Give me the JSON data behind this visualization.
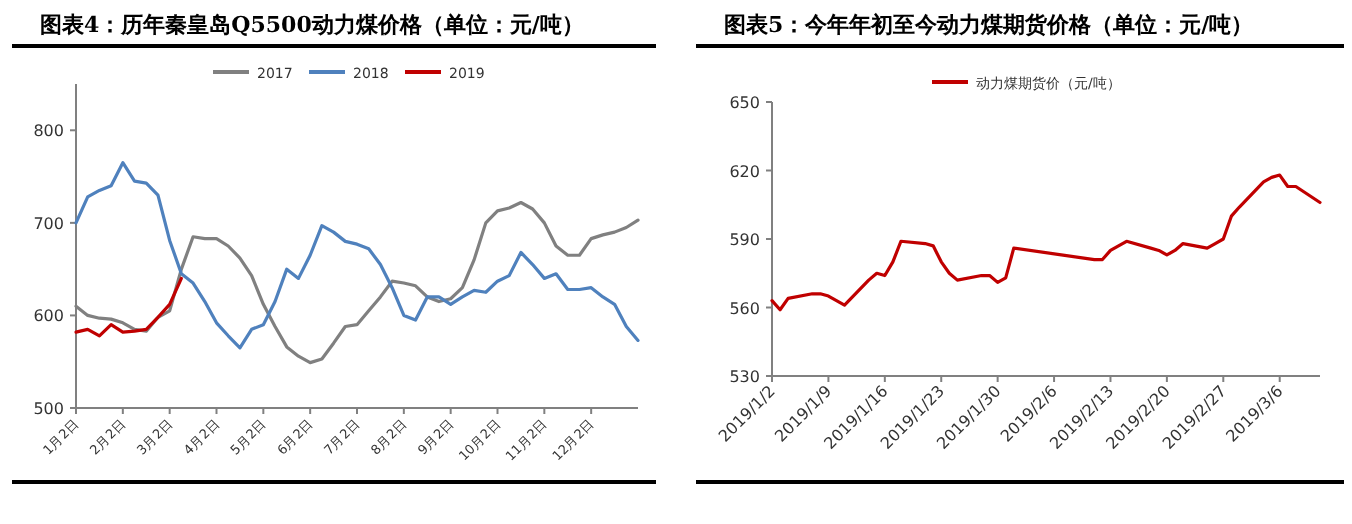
{
  "chart_data": [
    {
      "type": "line",
      "title": "图表4：历年秦皇岛Q5500动力煤价格（单位：元/吨）",
      "categories": [
        "1月2日",
        null,
        null,
        null,
        "2月2日",
        null,
        null,
        null,
        "3月2日",
        null,
        null,
        null,
        "4月2日",
        null,
        null,
        null,
        "5月2日",
        null,
        null,
        null,
        "6月2日",
        null,
        null,
        null,
        "7月2日",
        null,
        null,
        null,
        "8月2日",
        null,
        null,
        null,
        "9月2日",
        null,
        null,
        null,
        "10月2日",
        null,
        null,
        null,
        "11月2日",
        null,
        null,
        null,
        "12月2日",
        null,
        null,
        null,
        null
      ],
      "series": [
        {
          "name": "2017",
          "color": "#808080",
          "values": [
            610,
            600,
            597,
            596,
            592,
            585,
            583,
            598,
            605,
            650,
            685,
            683,
            683,
            675,
            662,
            643,
            612,
            588,
            566,
            556,
            549,
            553,
            570,
            588,
            590,
            605,
            620,
            637,
            635,
            632,
            620,
            615,
            618,
            630,
            660,
            700,
            713,
            716,
            722,
            715,
            700,
            675,
            665,
            665,
            683,
            687,
            690,
            695,
            703
          ]
        },
        {
          "name": "2018",
          "color": "#4f81bd",
          "values": [
            700,
            728,
            735,
            740,
            765,
            745,
            743,
            730,
            681,
            645,
            635,
            615,
            592,
            578,
            565,
            585,
            590,
            615,
            650,
            640,
            665,
            697,
            690,
            680,
            677,
            672,
            655,
            630,
            600,
            595,
            620,
            620,
            612,
            620,
            627,
            625,
            637,
            643,
            668,
            655,
            640,
            645,
            628,
            628,
            630,
            620,
            612,
            588,
            573
          ]
        },
        {
          "name": "2019",
          "color": "#c00000",
          "values": [
            582,
            585,
            578,
            590,
            582,
            583,
            585,
            598,
            612,
            640,
            null,
            null,
            null,
            null,
            null,
            null,
            null,
            null,
            null,
            null,
            null,
            null,
            null,
            null,
            null,
            null,
            null,
            null,
            null,
            null,
            null,
            null,
            null,
            null,
            null,
            null,
            null,
            null,
            null,
            null,
            null,
            null,
            null,
            null,
            null,
            null,
            null,
            null,
            null
          ]
        }
      ],
      "ylim": [
        500,
        850
      ],
      "yticks": [
        500,
        600,
        700,
        800
      ],
      "legend": "top",
      "grid": false
    },
    {
      "type": "line",
      "title": "图表5：今年年初至今动力煤期货价格（单位：元/吨）",
      "x": [
        "2019-01-02",
        "2019-01-03",
        "2019-01-04",
        "2019-01-07",
        "2019-01-08",
        "2019-01-09",
        "2019-01-10",
        "2019-01-11",
        "2019-01-14",
        "2019-01-15",
        "2019-01-16",
        "2019-01-17",
        "2019-01-18",
        "2019-01-21",
        "2019-01-22",
        "2019-01-23",
        "2019-01-24",
        "2019-01-25",
        "2019-01-28",
        "2019-01-29",
        "2019-01-30",
        "2019-01-31",
        "2019-02-01",
        "2019-02-11",
        "2019-02-12",
        "2019-02-13",
        "2019-02-14",
        "2019-02-15",
        "2019-02-18",
        "2019-02-19",
        "2019-02-20",
        "2019-02-21",
        "2019-02-22",
        "2019-02-25",
        "2019-02-26",
        "2019-02-27",
        "2019-02-28",
        "2019-03-01",
        "2019-03-04",
        "2019-03-05",
        "2019-03-06",
        "2019-03-07",
        "2019-03-08",
        "2019-03-11"
      ],
      "series": [
        {
          "name": "动力煤期货价（元/吨）",
          "color": "#c00000",
          "values": [
            563,
            559,
            564,
            566,
            566,
            565,
            563,
            561,
            572,
            575,
            574,
            580,
            589,
            588,
            587,
            580,
            575,
            572,
            574,
            574,
            571,
            573,
            586,
            581,
            581,
            585,
            587,
            589,
            586,
            585,
            583,
            585,
            588,
            586,
            588,
            590,
            600,
            604,
            615,
            617,
            618,
            613,
            613,
            606
          ]
        }
      ],
      "xlim": [
        "2019-01-02",
        "2019-03-11"
      ],
      "xticks": [
        {
          "value": "2019-01-02",
          "label": "2019/1/2"
        },
        {
          "value": "2019-01-09",
          "label": "2019/1/9"
        },
        {
          "value": "2019-01-16",
          "label": "2019/1/16"
        },
        {
          "value": "2019-01-23",
          "label": "2019/1/23"
        },
        {
          "value": "2019-01-30",
          "label": "2019/1/30"
        },
        {
          "value": "2019-02-06",
          "label": "2019/2/6"
        },
        {
          "value": "2019-02-13",
          "label": "2019/2/13"
        },
        {
          "value": "2019-02-20",
          "label": "2019/2/20"
        },
        {
          "value": "2019-02-27",
          "label": "2019/2/27"
        },
        {
          "value": "2019-03-06",
          "label": "2019/3/6"
        }
      ],
      "ylim": [
        530,
        650
      ],
      "yticks": [
        530,
        560,
        590,
        620,
        650
      ],
      "legend": "top",
      "grid": false
    }
  ]
}
